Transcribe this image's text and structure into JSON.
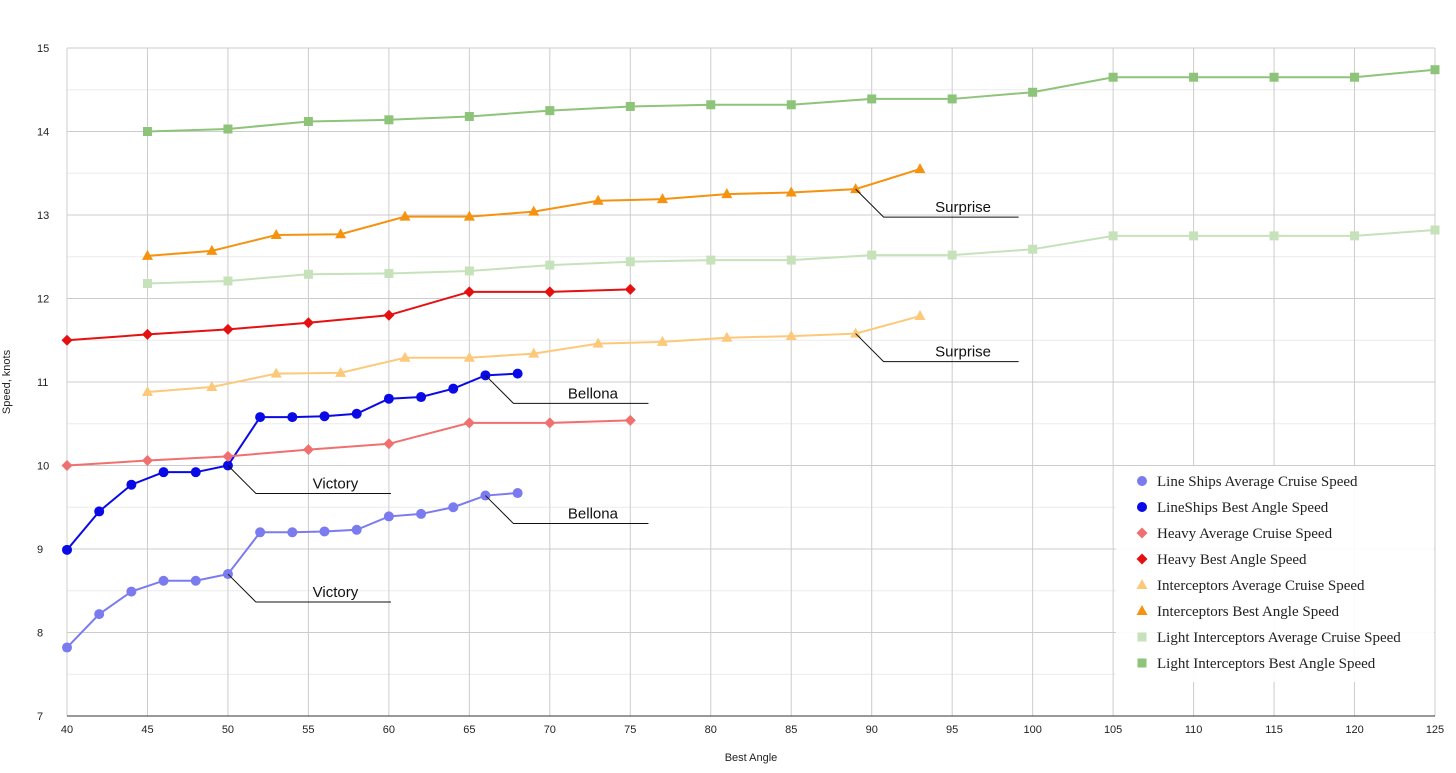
{
  "chart_data": {
    "type": "line",
    "xlabel": "Best Angle",
    "ylabel": "Speed, knots",
    "xlim": [
      40,
      125
    ],
    "ylim": [
      7,
      15
    ],
    "xticks": [
      40,
      45,
      50,
      55,
      60,
      65,
      70,
      75,
      80,
      85,
      90,
      95,
      100,
      105,
      110,
      115,
      120,
      125
    ],
    "yticks": [
      7,
      8,
      9,
      10,
      11,
      12,
      13,
      14,
      15
    ],
    "grid": true,
    "legend_position": "bottom-right",
    "series": [
      {
        "name": "Line Ships Average Cruise Speed",
        "color": "#7b7bf0",
        "marker": "circle",
        "points": [
          [
            40,
            7.82
          ],
          [
            42,
            8.22
          ],
          [
            44,
            8.49
          ],
          [
            46,
            8.62
          ],
          [
            48,
            8.62
          ],
          [
            50,
            8.7
          ],
          [
            52,
            9.2
          ],
          [
            54,
            9.2
          ],
          [
            56,
            9.21
          ],
          [
            58,
            9.23
          ],
          [
            60,
            9.39
          ],
          [
            62,
            9.42
          ],
          [
            64,
            9.5
          ],
          [
            66,
            9.64
          ],
          [
            68,
            9.67
          ]
        ]
      },
      {
        "name": "LineShips Best Angle Speed",
        "color": "#0a0ae6",
        "marker": "circle",
        "points": [
          [
            40,
            8.99
          ],
          [
            42,
            9.45
          ],
          [
            44,
            9.77
          ],
          [
            46,
            9.92
          ],
          [
            48,
            9.92
          ],
          [
            50,
            10.0
          ],
          [
            52,
            10.58
          ],
          [
            54,
            10.58
          ],
          [
            56,
            10.59
          ],
          [
            58,
            10.62
          ],
          [
            60,
            10.8
          ],
          [
            62,
            10.82
          ],
          [
            64,
            10.92
          ],
          [
            66,
            11.08
          ],
          [
            68,
            11.1
          ]
        ]
      },
      {
        "name": "Heavy Average Cruise Speed",
        "color": "#f07070",
        "marker": "diamond",
        "points": [
          [
            40,
            10.0
          ],
          [
            45,
            10.06
          ],
          [
            50,
            10.11
          ],
          [
            55,
            10.19
          ],
          [
            60,
            10.26
          ],
          [
            65,
            10.51
          ],
          [
            70,
            10.51
          ],
          [
            75,
            10.54
          ]
        ]
      },
      {
        "name": "Heavy Best Angle Speed",
        "color": "#e51010",
        "marker": "diamond",
        "points": [
          [
            40,
            11.5
          ],
          [
            45,
            11.57
          ],
          [
            50,
            11.63
          ],
          [
            55,
            11.71
          ],
          [
            60,
            11.8
          ],
          [
            65,
            12.08
          ],
          [
            70,
            12.08
          ],
          [
            75,
            12.11
          ]
        ]
      },
      {
        "name": "Interceptors Average Cruise Speed",
        "color": "#fcc97a",
        "marker": "triangle",
        "points": [
          [
            45,
            10.88
          ],
          [
            49,
            10.94
          ],
          [
            53,
            11.1
          ],
          [
            57,
            11.11
          ],
          [
            61,
            11.29
          ],
          [
            65,
            11.29
          ],
          [
            69,
            11.34
          ],
          [
            73,
            11.46
          ],
          [
            77,
            11.48
          ],
          [
            81,
            11.53
          ],
          [
            85,
            11.55
          ],
          [
            89,
            11.58
          ],
          [
            93,
            11.79
          ]
        ]
      },
      {
        "name": "Interceptors Best Angle Speed",
        "color": "#f5920f",
        "marker": "triangle",
        "points": [
          [
            45,
            12.51
          ],
          [
            49,
            12.57
          ],
          [
            53,
            12.76
          ],
          [
            57,
            12.77
          ],
          [
            61,
            12.98
          ],
          [
            65,
            12.98
          ],
          [
            69,
            13.04
          ],
          [
            73,
            13.17
          ],
          [
            77,
            13.19
          ],
          [
            81,
            13.25
          ],
          [
            85,
            13.27
          ],
          [
            89,
            13.31
          ],
          [
            93,
            13.55
          ]
        ]
      },
      {
        "name": "Light Interceptors Average Cruise Speed",
        "color": "#c6e2bb",
        "marker": "square",
        "points": [
          [
            45,
            12.18
          ],
          [
            50,
            12.21
          ],
          [
            55,
            12.29
          ],
          [
            60,
            12.3
          ],
          [
            65,
            12.33
          ],
          [
            70,
            12.4
          ],
          [
            75,
            12.44
          ],
          [
            80,
            12.46
          ],
          [
            85,
            12.46
          ],
          [
            90,
            12.52
          ],
          [
            95,
            12.52
          ],
          [
            100,
            12.59
          ],
          [
            105,
            12.75
          ],
          [
            110,
            12.75
          ],
          [
            115,
            12.75
          ],
          [
            120,
            12.75
          ],
          [
            125,
            12.82
          ]
        ]
      },
      {
        "name": "Light Interceptors Best Angle Speed",
        "color": "#8dc47a",
        "marker": "square",
        "points": [
          [
            45,
            14.0
          ],
          [
            50,
            14.03
          ],
          [
            55,
            14.12
          ],
          [
            60,
            14.14
          ],
          [
            65,
            14.18
          ],
          [
            70,
            14.25
          ],
          [
            75,
            14.3
          ],
          [
            80,
            14.32
          ],
          [
            85,
            14.32
          ],
          [
            90,
            14.39
          ],
          [
            95,
            14.39
          ],
          [
            100,
            14.47
          ],
          [
            105,
            14.65
          ],
          [
            110,
            14.65
          ],
          [
            115,
            14.65
          ],
          [
            120,
            14.65
          ],
          [
            125,
            14.74
          ]
        ]
      }
    ],
    "annotations": [
      {
        "text": "Surprise",
        "x": 89,
        "y": 13.31
      },
      {
        "text": "Surprise",
        "x": 89,
        "y": 11.58
      },
      {
        "text": "Bellona",
        "x": 66,
        "y": 11.08
      },
      {
        "text": "Bellona",
        "x": 66,
        "y": 9.64
      },
      {
        "text": "Victory",
        "x": 50,
        "y": 10.0
      },
      {
        "text": "Victory",
        "x": 50,
        "y": 8.7
      }
    ]
  }
}
